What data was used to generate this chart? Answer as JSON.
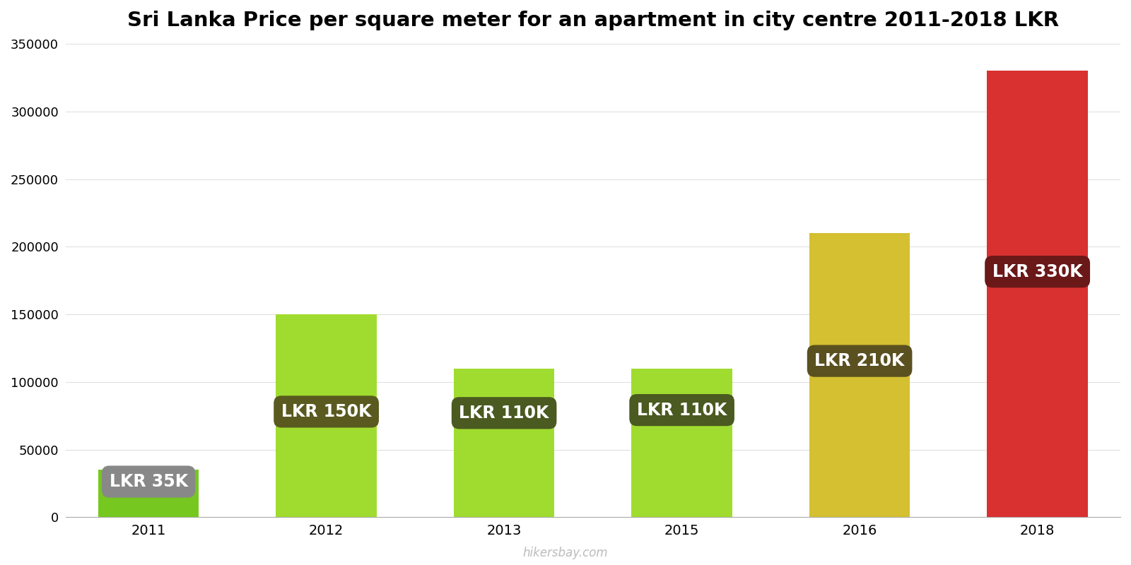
{
  "title": "Sri Lanka Price per square meter for an apartment in city centre 2011-2018 LKR",
  "years": [
    2011,
    2012,
    2013,
    2015,
    2016,
    2018
  ],
  "x_positions": [
    0,
    1.5,
    3.0,
    4.5,
    6.0,
    7.5
  ],
  "values": [
    35000,
    150000,
    110000,
    110000,
    210000,
    330000
  ],
  "labels": [
    "LKR 35K",
    "LKR 150K",
    "LKR 110K",
    "LKR 110K",
    "LKR 210K",
    "LKR 330K"
  ],
  "bar_colors": [
    "#76c820",
    "#a0dc30",
    "#a0dc30",
    "#a0dc30",
    "#d4c030",
    "#d93030"
  ],
  "label_box_colors": [
    "#888888",
    "#5a5a20",
    "#4a5a20",
    "#4a5a20",
    "#5a5020",
    "#6a1818"
  ],
  "label_y_fractions": [
    0.75,
    0.52,
    0.7,
    0.72,
    0.55,
    0.55
  ],
  "ylim": [
    0,
    350000
  ],
  "yticks": [
    0,
    50000,
    100000,
    150000,
    200000,
    250000,
    300000,
    350000
  ],
  "ytick_labels": [
    "0",
    "50000",
    "100000",
    "150000",
    "200000",
    "250000",
    "300000",
    "350000"
  ],
  "bar_width": 0.85,
  "xlim_left": -0.7,
  "xlim_right": 8.2,
  "title_fontsize": 21,
  "tick_fontsize": 13,
  "label_fontsize": 17,
  "watermark": "hikersbay.com",
  "background_color": "#ffffff"
}
